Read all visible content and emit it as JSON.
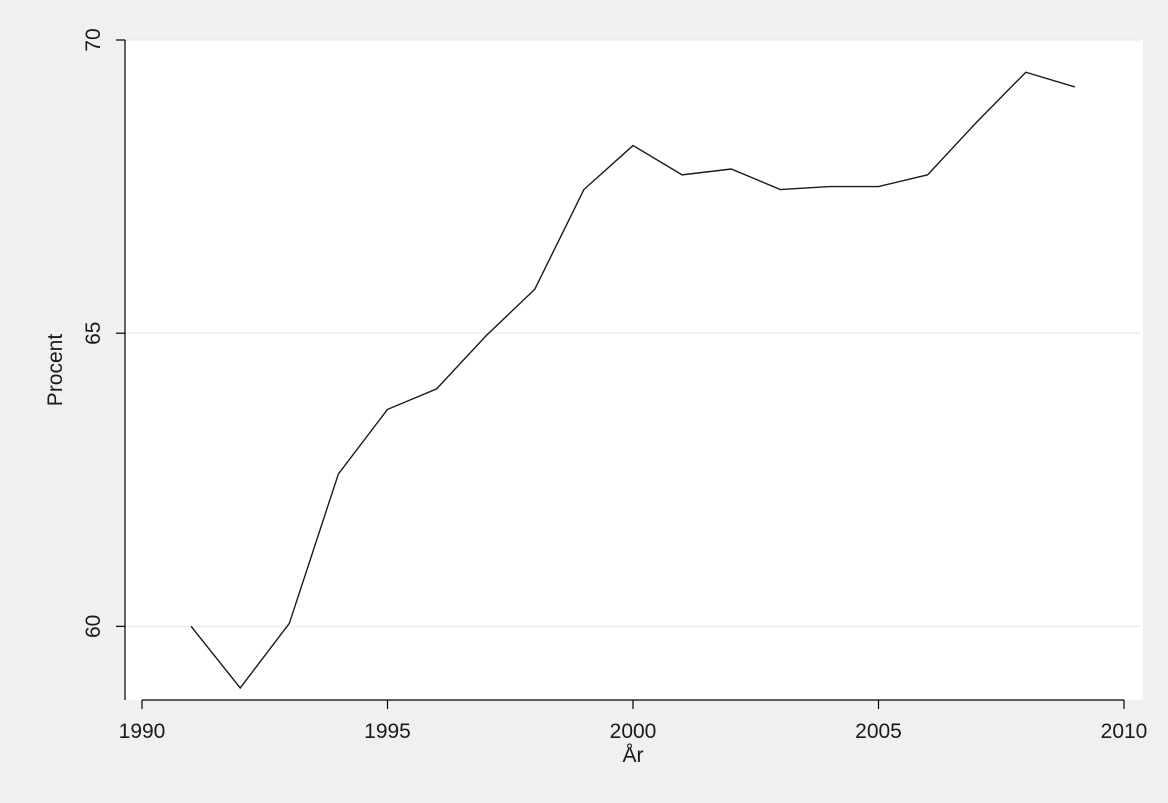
{
  "colors": {
    "outer_background": "#f0f0f0",
    "plot_background": "#ffffff",
    "gridline": "#e6e6e6",
    "axis": "#000000",
    "line": "#1a1a1a"
  },
  "chart_data": {
    "type": "line",
    "title": "",
    "xlabel": "År",
    "ylabel": "Procent",
    "xlim": [
      1990,
      2010
    ],
    "ylim": [
      59,
      70
    ],
    "x_ticks": [
      1990,
      1995,
      2000,
      2005,
      2010
    ],
    "y_ticks": [
      60,
      65,
      70
    ],
    "y_grid": true,
    "legend": "none",
    "series": [
      {
        "x": [
          1991,
          1992,
          1993,
          1994,
          1995,
          1996,
          1997,
          1998,
          1999,
          2000,
          2001,
          2002,
          2003,
          2004,
          2005,
          2006,
          2007,
          2008,
          2009
        ],
        "values": [
          60.0,
          58.95,
          60.05,
          62.6,
          63.7,
          64.05,
          64.95,
          65.75,
          67.45,
          68.2,
          67.7,
          67.8,
          67.45,
          67.5,
          67.5,
          67.7,
          68.6,
          69.45,
          69.2
        ]
      }
    ]
  }
}
